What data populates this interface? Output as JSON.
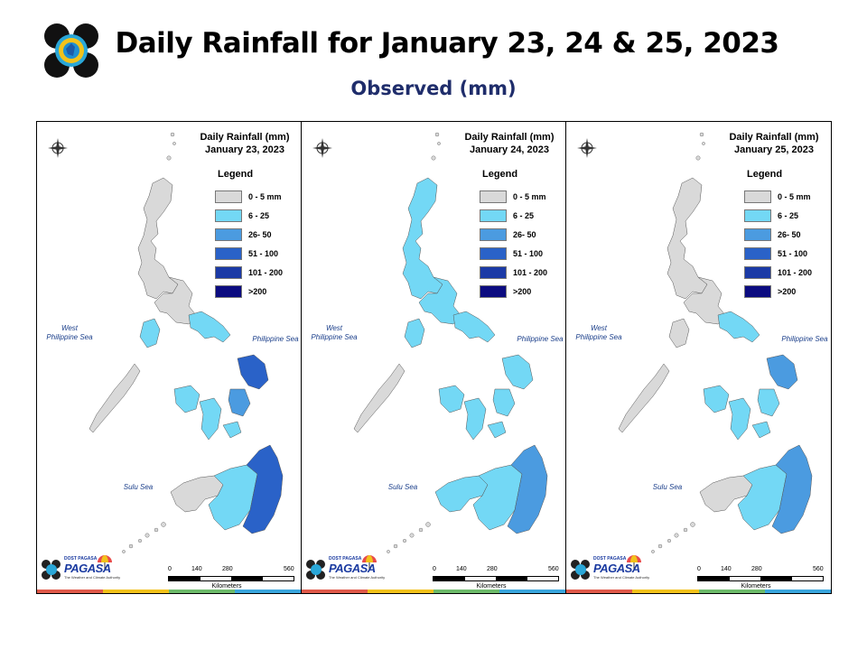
{
  "header": {
    "title": "Daily Rainfall for January 23, 24 & 25, 2023",
    "subtitle": "Observed (mm)"
  },
  "legend": {
    "title": "Legend",
    "items": [
      {
        "label": "0 - 5 mm",
        "color": "#d9d9d9"
      },
      {
        "label": "6 - 25",
        "color": "#73d8f5"
      },
      {
        "label": "26- 50",
        "color": "#4b9be0"
      },
      {
        "label": "51 - 100",
        "color": "#2a62c8"
      },
      {
        "label": "101 - 200",
        "color": "#1b3aa6"
      },
      {
        "label": ">200",
        "color": "#0b0b80"
      }
    ]
  },
  "seas": {
    "west": "West Philippine Sea",
    "east": "Philippine Sea",
    "sulu": "Sulu Sea"
  },
  "compass": {
    "n": "N",
    "e": "E",
    "s": "S",
    "w": "W"
  },
  "scale": {
    "ticks": [
      "0",
      "140",
      "280",
      "560"
    ],
    "unit": "Kilometers"
  },
  "branding": {
    "brand": "DOST PAGASA",
    "name": "PAGASA",
    "tagline": "The Weather and Climate Authority"
  },
  "panels": [
    {
      "line1": "Daily Rainfall (mm)",
      "line2": "January 23, 2023",
      "colors": {
        "north": "#d9d9d9",
        "luzon_east": "#d9d9d9",
        "bicol": "#73d8f5",
        "mindoro": "#73d8f5",
        "panay": "#73d8f5",
        "negros": "#73d8f5",
        "samar": "#2a62c8",
        "leyte": "#4b9be0",
        "mindanao_w": "#d9d9d9",
        "mindanao_c": "#73d8f5",
        "mindanao_e": "#2a62c8"
      }
    },
    {
      "line1": "Daily Rainfall (mm)",
      "line2": "January 24, 2023",
      "colors": {
        "north": "#73d8f5",
        "luzon_east": "#73d8f5",
        "bicol": "#73d8f5",
        "mindoro": "#73d8f5",
        "panay": "#73d8f5",
        "negros": "#73d8f5",
        "samar": "#73d8f5",
        "leyte": "#73d8f5",
        "mindanao_w": "#73d8f5",
        "mindanao_c": "#73d8f5",
        "mindanao_e": "#4b9be0"
      }
    },
    {
      "line1": "Daily Rainfall (mm)",
      "line2": "January 25, 2023",
      "colors": {
        "north": "#d9d9d9",
        "luzon_east": "#d9d9d9",
        "bicol": "#73d8f5",
        "mindoro": "#d9d9d9",
        "panay": "#73d8f5",
        "negros": "#73d8f5",
        "samar": "#4b9be0",
        "leyte": "#73d8f5",
        "mindanao_w": "#d9d9d9",
        "mindanao_c": "#73d8f5",
        "mindanao_e": "#4b9be0"
      }
    }
  ]
}
